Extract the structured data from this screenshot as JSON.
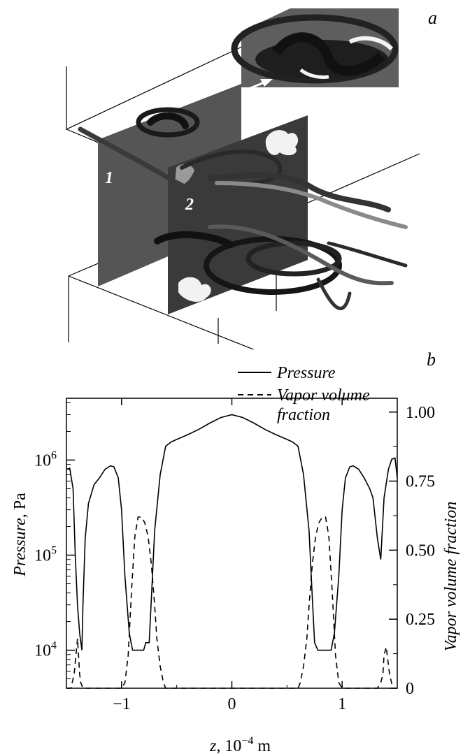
{
  "panel_a": {
    "label": "a",
    "plane_labels": [
      "1",
      "2"
    ],
    "colors": {
      "plane": "#555555",
      "plane_dark": "#333333",
      "ribbon": "#2a2a2a",
      "outline": "#000000"
    }
  },
  "chart_data": {
    "type": "line",
    "panel_label": "b",
    "xlabel": "z, 10^{-4} m",
    "xlabel_parts": {
      "var": "z",
      "rest": ", 10",
      "exp": "−4",
      "unit": " m"
    },
    "ylabel_left": {
      "italic": "Pressure,",
      "unit": "Pa"
    },
    "ylabel_right": "Vapor volume fraction",
    "xlim": [
      -1.5,
      1.5
    ],
    "ylim_left_log10": [
      3.6,
      6.65
    ],
    "ylim_right": [
      0,
      1.05
    ],
    "y_left_scale": "log",
    "x_ticks": [
      {
        "value": -1,
        "label": "−1"
      },
      {
        "value": 0,
        "label": "0"
      },
      {
        "value": 1,
        "label": "1"
      }
    ],
    "y_left_ticks": [
      {
        "log10": 4,
        "base": "10",
        "exp": "4"
      },
      {
        "log10": 5,
        "base": "10",
        "exp": "5"
      },
      {
        "log10": 6,
        "base": "10",
        "exp": "6"
      }
    ],
    "y_right_ticks": [
      {
        "value": 0,
        "label": "0"
      },
      {
        "value": 0.25,
        "label": "0.25"
      },
      {
        "value": 0.5,
        "label": "0.50"
      },
      {
        "value": 0.75,
        "label": "0.75"
      },
      {
        "value": 1.0,
        "label": "1.00"
      }
    ],
    "legend": [
      {
        "name": "Pressure",
        "style": "solid"
      },
      {
        "name": "Vapor volume",
        "name_line2": "fraction",
        "style": "dashed"
      }
    ],
    "legend_position": "top-right",
    "grid": false,
    "series": [
      {
        "name": "Pressure",
        "axis": "left",
        "unit": "Pa",
        "x": [
          -1.5,
          -1.47,
          -1.44,
          -1.42,
          -1.4,
          -1.38,
          -1.36,
          -1.35,
          -1.33,
          -1.3,
          -1.25,
          -1.2,
          -1.15,
          -1.1,
          -1.07,
          -1.03,
          -1.0,
          -0.97,
          -0.93,
          -0.9,
          -0.87,
          -0.8,
          -0.78,
          -0.75,
          -0.72,
          -0.7,
          -0.65,
          -0.6,
          -0.55,
          -0.5,
          -0.4,
          -0.3,
          -0.2,
          -0.1,
          0.0,
          0.1,
          0.2,
          0.3,
          0.4,
          0.5,
          0.55,
          0.6,
          0.65,
          0.7,
          0.72,
          0.75,
          0.78,
          0.8,
          0.87,
          0.9,
          0.93,
          0.97,
          1.0,
          1.03,
          1.07,
          1.1,
          1.15,
          1.2,
          1.25,
          1.28,
          1.32,
          1.35,
          1.38,
          1.42,
          1.45,
          1.48,
          1.5
        ],
        "y": [
          800000,
          820000,
          500000,
          100000,
          30000,
          15000,
          10000,
          30000,
          150000,
          350000,
          550000,
          650000,
          800000,
          870000,
          850000,
          650000,
          300000,
          60000,
          15000,
          10000,
          10000,
          10000,
          12000,
          12000,
          60000,
          180000,
          700000,
          1400000,
          1550000,
          1650000,
          1850000,
          2100000,
          2450000,
          2800000,
          3000000,
          2800000,
          2450000,
          2100000,
          1850000,
          1650000,
          1550000,
          1400000,
          700000,
          180000,
          60000,
          12000,
          10000,
          10000,
          10000,
          10000,
          15000,
          60000,
          300000,
          650000,
          850000,
          870000,
          800000,
          650000,
          500000,
          400000,
          150000,
          90000,
          400000,
          800000,
          1020000,
          1050000,
          650000
        ]
      },
      {
        "name": "Vapor volume fraction",
        "axis": "right",
        "unit": "",
        "x": [
          -1.5,
          -1.46,
          -1.43,
          -1.4,
          -1.38,
          -1.37,
          -1.35,
          -1.32,
          -1.0,
          -0.97,
          -0.94,
          -0.91,
          -0.88,
          -0.85,
          -0.82,
          -0.79,
          -0.76,
          -0.73,
          -0.7,
          -0.68,
          -0.65,
          -0.62,
          -0.6,
          -0.55,
          0.55,
          0.6,
          0.62,
          0.65,
          0.68,
          0.7,
          0.73,
          0.76,
          0.79,
          0.82,
          0.85,
          0.88,
          0.91,
          0.94,
          0.97,
          1.0,
          1.32,
          1.35,
          1.37,
          1.38,
          1.4,
          1.43,
          1.46,
          1.5
        ],
        "y": [
          0.0,
          0.0,
          0.05,
          0.18,
          0.05,
          0.02,
          0.0,
          0.0,
          0.0,
          0.02,
          0.12,
          0.35,
          0.55,
          0.62,
          0.62,
          0.6,
          0.55,
          0.45,
          0.3,
          0.18,
          0.08,
          0.02,
          0.0,
          0.0,
          0.0,
          0.0,
          0.02,
          0.08,
          0.18,
          0.3,
          0.45,
          0.55,
          0.6,
          0.62,
          0.62,
          0.55,
          0.35,
          0.12,
          0.02,
          0.0,
          0.0,
          0.02,
          0.05,
          0.12,
          0.15,
          0.05,
          0.0,
          0.0
        ]
      }
    ]
  }
}
